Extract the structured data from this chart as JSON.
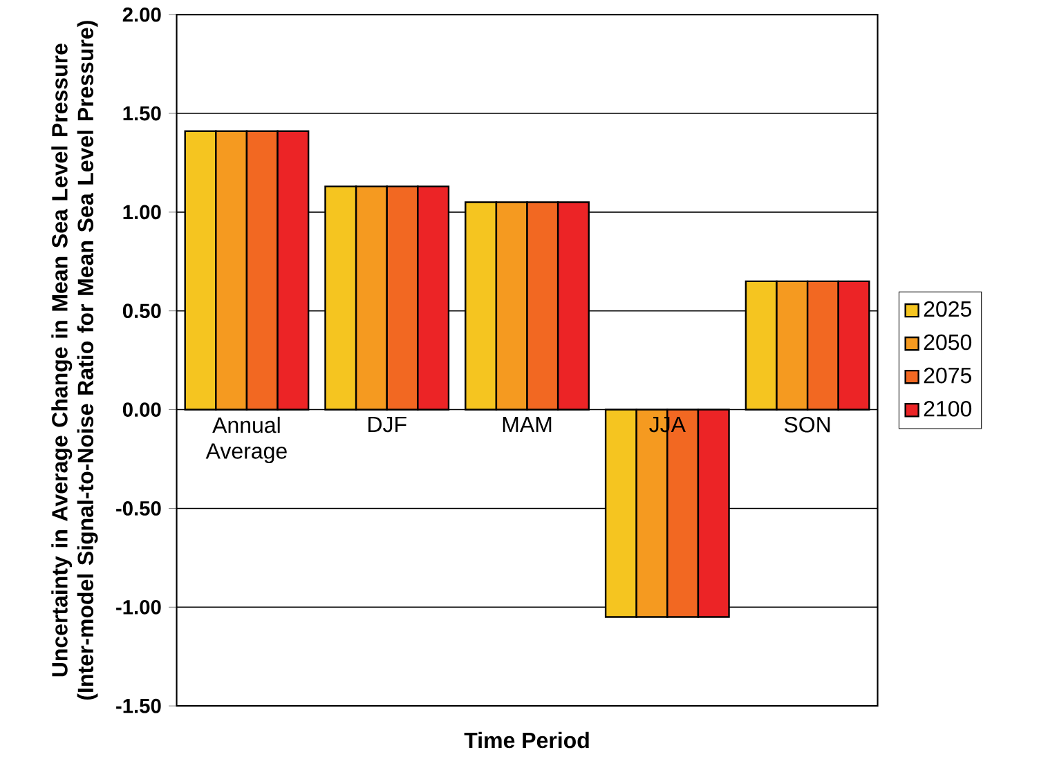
{
  "chart_data": {
    "type": "bar",
    "xlabel": "Time Period",
    "ylabel": "Uncertainty in Average Change in Mean Sea Level Pressure  (Inter-model Signal-to-Noise Ratio for Mean Sea Level Pressure)",
    "categories": [
      "Annual Average",
      "DJF",
      "MAM",
      "JJA",
      "SON"
    ],
    "series": [
      {
        "name": "2025",
        "color": "#f5c520",
        "values": [
          1.41,
          1.13,
          1.05,
          -1.05,
          0.65
        ]
      },
      {
        "name": "2050",
        "color": "#f59a20",
        "values": [
          1.41,
          1.13,
          1.05,
          -1.05,
          0.65
        ]
      },
      {
        "name": "2075",
        "color": "#f26822",
        "values": [
          1.41,
          1.13,
          1.05,
          -1.05,
          0.65
        ]
      },
      {
        "name": "2100",
        "color": "#ec2426",
        "values": [
          1.41,
          1.13,
          1.05,
          -1.05,
          0.65
        ]
      }
    ],
    "ylim": [
      -1.5,
      2.0
    ],
    "yticks": [
      {
        "value": -1.5,
        "label": "-1.50"
      },
      {
        "value": -1.0,
        "label": "-1.00"
      },
      {
        "value": -0.5,
        "label": "-0.50"
      },
      {
        "value": 0,
        "label": "0.00"
      },
      {
        "value": 0.5,
        "label": "0.50"
      },
      {
        "value": 1.0,
        "label": "1.00"
      },
      {
        "value": 1.5,
        "label": "1.50"
      },
      {
        "value": 2.0,
        "label": "2.00"
      }
    ],
    "grid": "y",
    "legend": "right"
  }
}
